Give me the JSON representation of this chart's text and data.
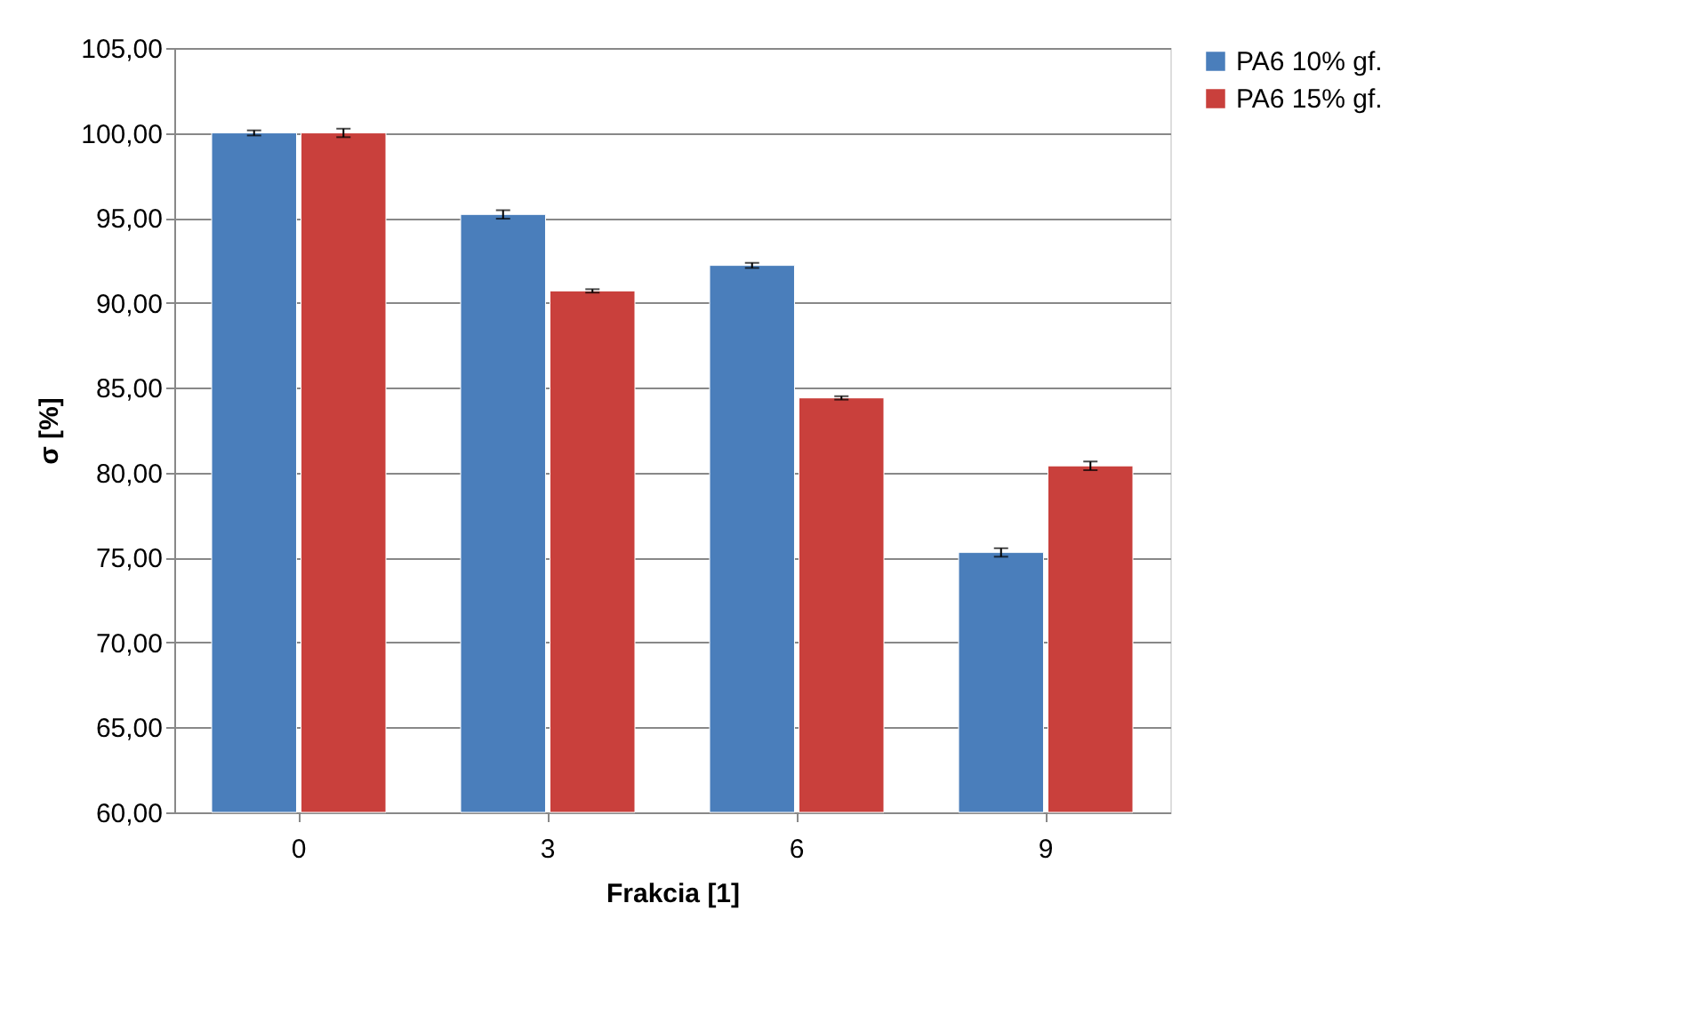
{
  "chart_data": {
    "type": "bar",
    "xlabel": "Frakcia [1]",
    "ylabel": "σ [%]",
    "categories": [
      "0",
      "3",
      "6",
      "9"
    ],
    "series": [
      {
        "name": "PA6 10% gf.",
        "color": "#4a7ebb",
        "values": [
          100.0,
          95.2,
          92.2,
          75.3
        ],
        "errors": [
          0.15,
          0.25,
          0.15,
          0.25
        ]
      },
      {
        "name": "PA6 15% gf.",
        "color": "#c9403c",
        "values": [
          100.0,
          90.7,
          84.4,
          80.4
        ],
        "errors": [
          0.25,
          0.1,
          0.1,
          0.25
        ]
      }
    ],
    "ylim": [
      60,
      105
    ],
    "yticks": [
      {
        "value": 60,
        "label": "60,00"
      },
      {
        "value": 65,
        "label": "65,00"
      },
      {
        "value": 70,
        "label": "70,00"
      },
      {
        "value": 75,
        "label": "75,00"
      },
      {
        "value": 80,
        "label": "80,00"
      },
      {
        "value": 85,
        "label": "85,00"
      },
      {
        "value": 90,
        "label": "90,00"
      },
      {
        "value": 95,
        "label": "95,00"
      },
      {
        "value": 100,
        "label": "100,00"
      },
      {
        "value": 105,
        "label": "105,00"
      }
    ],
    "grid": "y",
    "legend": "right"
  }
}
